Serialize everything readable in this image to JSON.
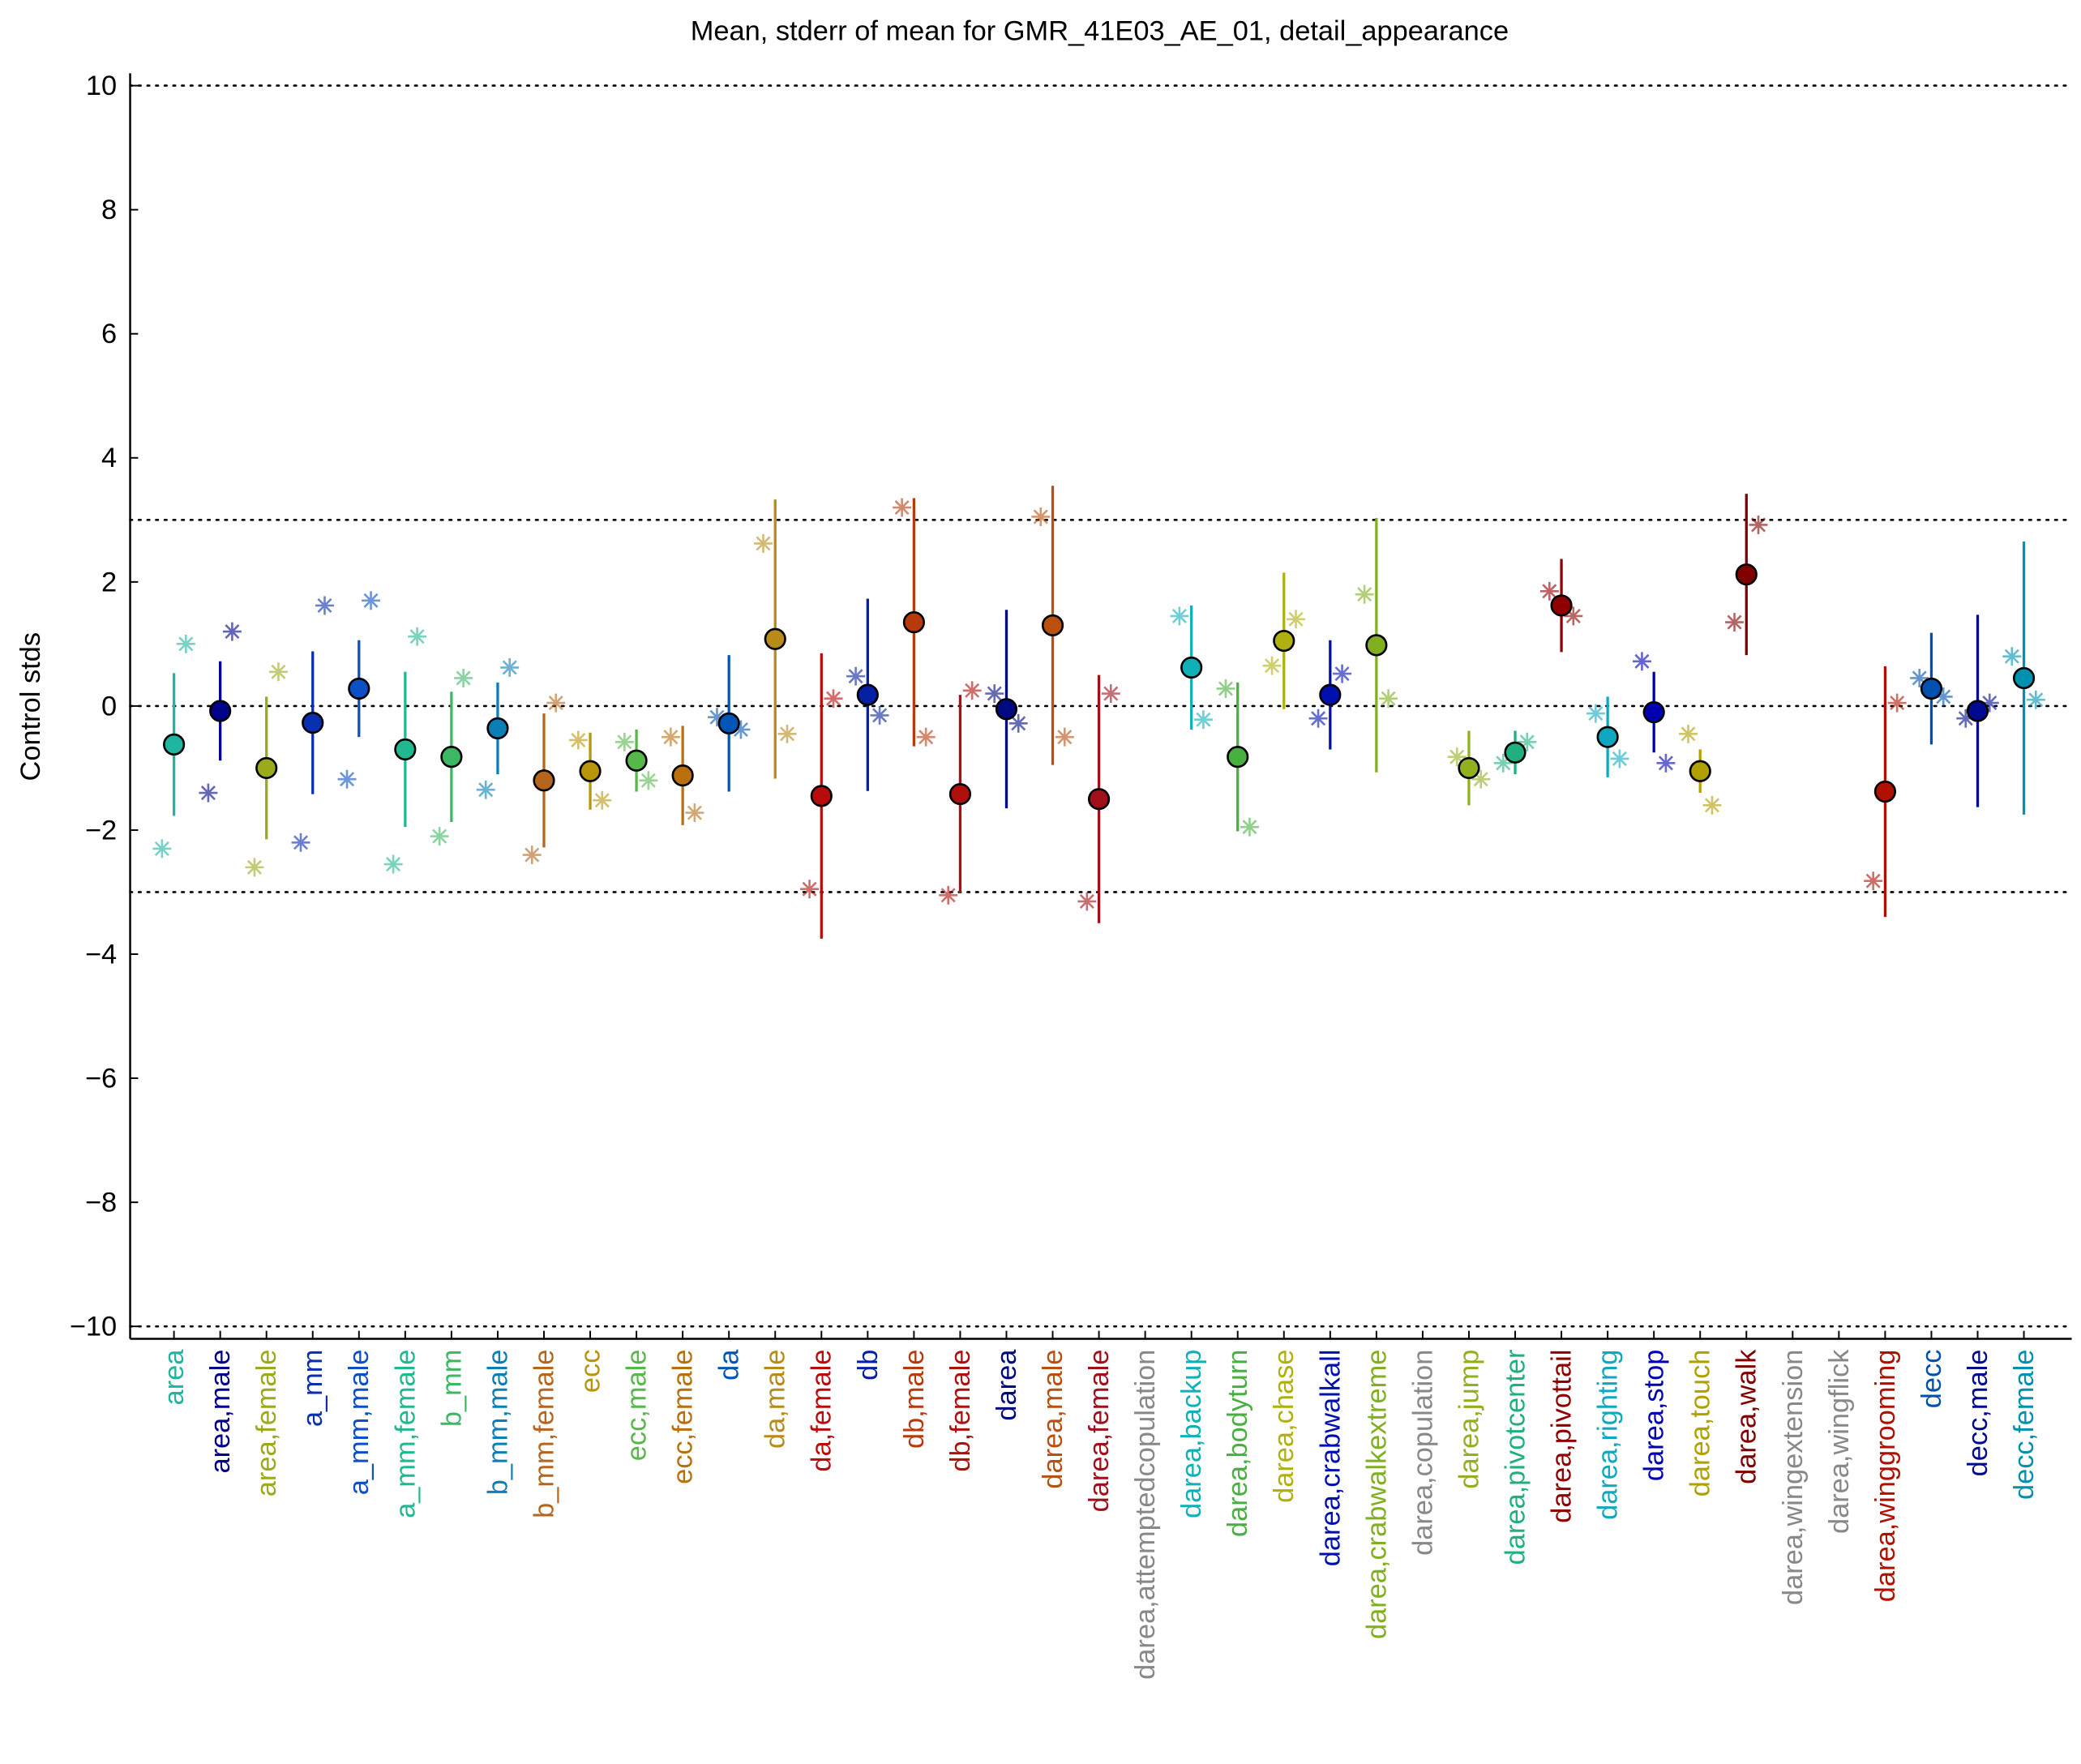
{
  "chart_data": {
    "type": "errorbar",
    "title": "Mean, stderr of mean for GMR_41E03_AE_01, detail_appearance",
    "ylabel": "Control stds",
    "categories": [
      "area",
      "area,male",
      "area,female",
      "a_mm",
      "a_mm,male",
      "a_mm,female",
      "b_mm",
      "b_mm,male",
      "b_mm,female",
      "ecc",
      "ecc,male",
      "ecc,female",
      "da",
      "da,male",
      "da,female",
      "db",
      "db,male",
      "db,female",
      "darea",
      "darea,male",
      "darea,female",
      "darea,attemptedcopulation",
      "darea,backup",
      "darea,bodyturn",
      "darea,chase",
      "darea,crabwalkall",
      "darea,crabwalkextreme",
      "darea,copulation",
      "darea,jump",
      "darea,pivotcenter",
      "darea,pivottail",
      "darea,righting",
      "darea,stop",
      "darea,touch",
      "darea,walk",
      "darea,wingextension",
      "darea,wingflick",
      "darea,winggrooming",
      "decc",
      "decc,male",
      "decc,female"
    ],
    "colors": [
      "#1fb5a0",
      "#00008b",
      "#9aaa1a",
      "#0a2fb0",
      "#0d4fc4",
      "#20b890",
      "#3cb862",
      "#0b7fb5",
      "#b5651d",
      "#b8960c",
      "#56b84a",
      "#b8700f",
      "#0055b5",
      "#b88a1a",
      "#b80c0c",
      "#0620a5",
      "#b83a0c",
      "#b0100c",
      "#000a80",
      "#b8500f",
      "#a0101a",
      "#888888",
      "#10b0b8",
      "#48b040",
      "#b0b010",
      "#0010b0",
      "#80b020",
      "#888888",
      "#90b020",
      "#20b080",
      "#900000",
      "#10a8c0",
      "#0000b0",
      "#b0a000",
      "#800000",
      "#888888",
      "#888888",
      "#b01000",
      "#0050b0",
      "#000a90",
      "#0090b0"
    ],
    "values": [
      -0.62,
      -0.08,
      -1.0,
      -0.27,
      0.28,
      -0.7,
      -0.82,
      -0.36,
      -1.2,
      -1.05,
      -0.88,
      -1.12,
      -0.28,
      1.08,
      -1.45,
      0.18,
      1.35,
      -1.42,
      -0.05,
      1.3,
      -1.5,
      null,
      0.62,
      -0.82,
      1.05,
      0.18,
      0.98,
      null,
      -1.0,
      -0.75,
      1.62,
      -0.5,
      -0.1,
      -1.05,
      2.12,
      null,
      null,
      -1.38,
      0.28,
      -0.08,
      0.45
    ],
    "errors": [
      1.15,
      0.8,
      1.15,
      1.15,
      0.78,
      1.25,
      1.05,
      0.74,
      1.08,
      0.62,
      0.5,
      0.8,
      1.1,
      2.25,
      2.3,
      1.55,
      2.0,
      1.6,
      1.6,
      2.25,
      2.0,
      null,
      1.0,
      1.2,
      1.1,
      0.88,
      2.05,
      null,
      0.6,
      0.35,
      0.75,
      0.65,
      0.65,
      0.35,
      1.3,
      null,
      null,
      2.02,
      0.9,
      1.55,
      2.2
    ],
    "left_values": [
      -2.3,
      -1.4,
      -2.6,
      -2.2,
      -1.18,
      -2.55,
      -2.1,
      -1.35,
      -2.4,
      -0.55,
      -0.58,
      -0.5,
      -0.18,
      2.62,
      -2.95,
      0.48,
      3.2,
      -3.05,
      0.2,
      3.05,
      -3.15,
      null,
      1.45,
      0.28,
      0.65,
      -0.2,
      1.8,
      null,
      -0.82,
      -0.92,
      1.85,
      -0.12,
      0.72,
      -0.45,
      1.35,
      null,
      null,
      -2.82,
      0.45,
      -0.2,
      0.8
    ],
    "right_values": [
      1.0,
      1.2,
      0.55,
      1.62,
      1.7,
      1.12,
      0.45,
      0.62,
      0.05,
      -1.52,
      -1.2,
      -1.72,
      -0.38,
      -0.45,
      0.12,
      -0.15,
      -0.5,
      0.25,
      -0.28,
      -0.5,
      0.2,
      null,
      -0.22,
      -1.95,
      1.4,
      0.52,
      0.12,
      null,
      -1.18,
      -0.58,
      1.45,
      -0.85,
      -0.92,
      -1.6,
      2.92,
      null,
      null,
      0.05,
      0.15,
      0.05,
      0.1
    ],
    "ylim": [
      -10.2,
      10.2
    ],
    "yticks": [
      {
        "value": -10,
        "label": "−10"
      },
      {
        "value": -8,
        "label": "−8"
      },
      {
        "value": -6,
        "label": "−6"
      },
      {
        "value": -4,
        "label": "−4"
      },
      {
        "value": -2,
        "label": "−2"
      },
      0,
      2,
      4,
      6,
      8,
      10
    ],
    "reference_lines": [
      -10,
      -3,
      0,
      3,
      10
    ]
  }
}
